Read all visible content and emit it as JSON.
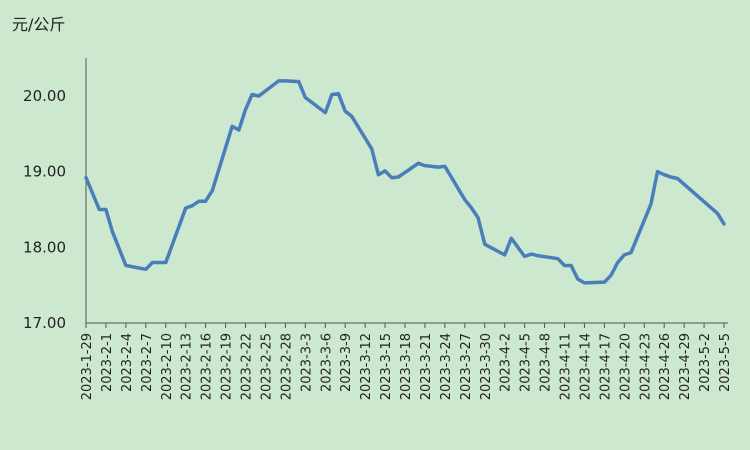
{
  "chart_data": {
    "type": "line",
    "title": "",
    "xlabel": "",
    "ylabel": "元/公斤",
    "ylim": [
      17,
      20.5
    ],
    "yticks": [
      "17.00",
      "18.00",
      "19.00",
      "20.00"
    ],
    "grid": false,
    "legend": "none",
    "colors": {
      "background": "#cce8cf",
      "line": "#4a7ebb",
      "axis": "#555555",
      "text": "#222222"
    },
    "x_ticks": [
      "2023-1-29",
      "2023-2-1",
      "2023-2-4",
      "2023-2-7",
      "2023-2-10",
      "2023-2-13",
      "2023-2-16",
      "2023-2-19",
      "2023-2-22",
      "2023-2-25",
      "2023-2-28",
      "2023-3-3",
      "2023-3-6",
      "2023-3-9",
      "2023-3-12",
      "2023-3-15",
      "2023-3-18",
      "2023-3-21",
      "2023-3-24",
      "2023-3-27",
      "2023-3-30",
      "2023-4-2",
      "2023-4-5",
      "2023-4-8",
      "2023-4-11",
      "2023-4-14",
      "2023-4-17",
      "2023-4-20",
      "2023-4-23",
      "2023-4-26",
      "2023-4-29",
      "2023-5-2",
      "2023-5-5"
    ],
    "series": [
      {
        "x": [
          "2023-1-29",
          "2023-1-31",
          "2023-2-1",
          "2023-2-2",
          "2023-2-4",
          "2023-2-7",
          "2023-2-8",
          "2023-2-9",
          "2023-2-10",
          "2023-2-13",
          "2023-2-14",
          "2023-2-15",
          "2023-2-16",
          "2023-2-17",
          "2023-2-20",
          "2023-2-21",
          "2023-2-22",
          "2023-2-23",
          "2023-2-24",
          "2023-2-27",
          "2023-2-28",
          "2023-3-2",
          "2023-3-3",
          "2023-3-6",
          "2023-3-7",
          "2023-3-8",
          "2023-3-9",
          "2023-3-10",
          "2023-3-13",
          "2023-3-14",
          "2023-3-15",
          "2023-3-16",
          "2023-3-17",
          "2023-3-20",
          "2023-3-21",
          "2023-3-23",
          "2023-3-24",
          "2023-3-27",
          "2023-3-28",
          "2023-3-29",
          "2023-3-30",
          "2023-4-2",
          "2023-4-3",
          "2023-4-5",
          "2023-4-6",
          "2023-4-7",
          "2023-4-10",
          "2023-4-11",
          "2023-4-12",
          "2023-4-13",
          "2023-4-14",
          "2023-4-17",
          "2023-4-18",
          "2023-4-19",
          "2023-4-20",
          "2023-4-21",
          "2023-4-24",
          "2023-4-25",
          "2023-4-26",
          "2023-4-27",
          "2023-4-28",
          "2023-5-4",
          "2023-5-5"
        ],
        "values": [
          18.92,
          18.5,
          18.5,
          18.2,
          17.76,
          17.71,
          17.8,
          17.8,
          17.8,
          18.52,
          18.55,
          18.61,
          18.61,
          18.75,
          19.6,
          19.55,
          19.82,
          20.02,
          20.0,
          20.2,
          20.2,
          20.19,
          19.98,
          19.78,
          20.02,
          20.03,
          19.8,
          19.73,
          19.3,
          18.96,
          19.01,
          18.92,
          18.93,
          19.11,
          19.08,
          19.06,
          19.07,
          18.63,
          18.52,
          18.39,
          18.04,
          17.9,
          18.12,
          17.88,
          17.91,
          17.89,
          17.85,
          17.76,
          17.76,
          17.58,
          17.53,
          17.54,
          17.63,
          17.8,
          17.9,
          17.93,
          18.57,
          19.0,
          18.96,
          18.93,
          18.91,
          18.45,
          18.31
        ]
      }
    ]
  }
}
